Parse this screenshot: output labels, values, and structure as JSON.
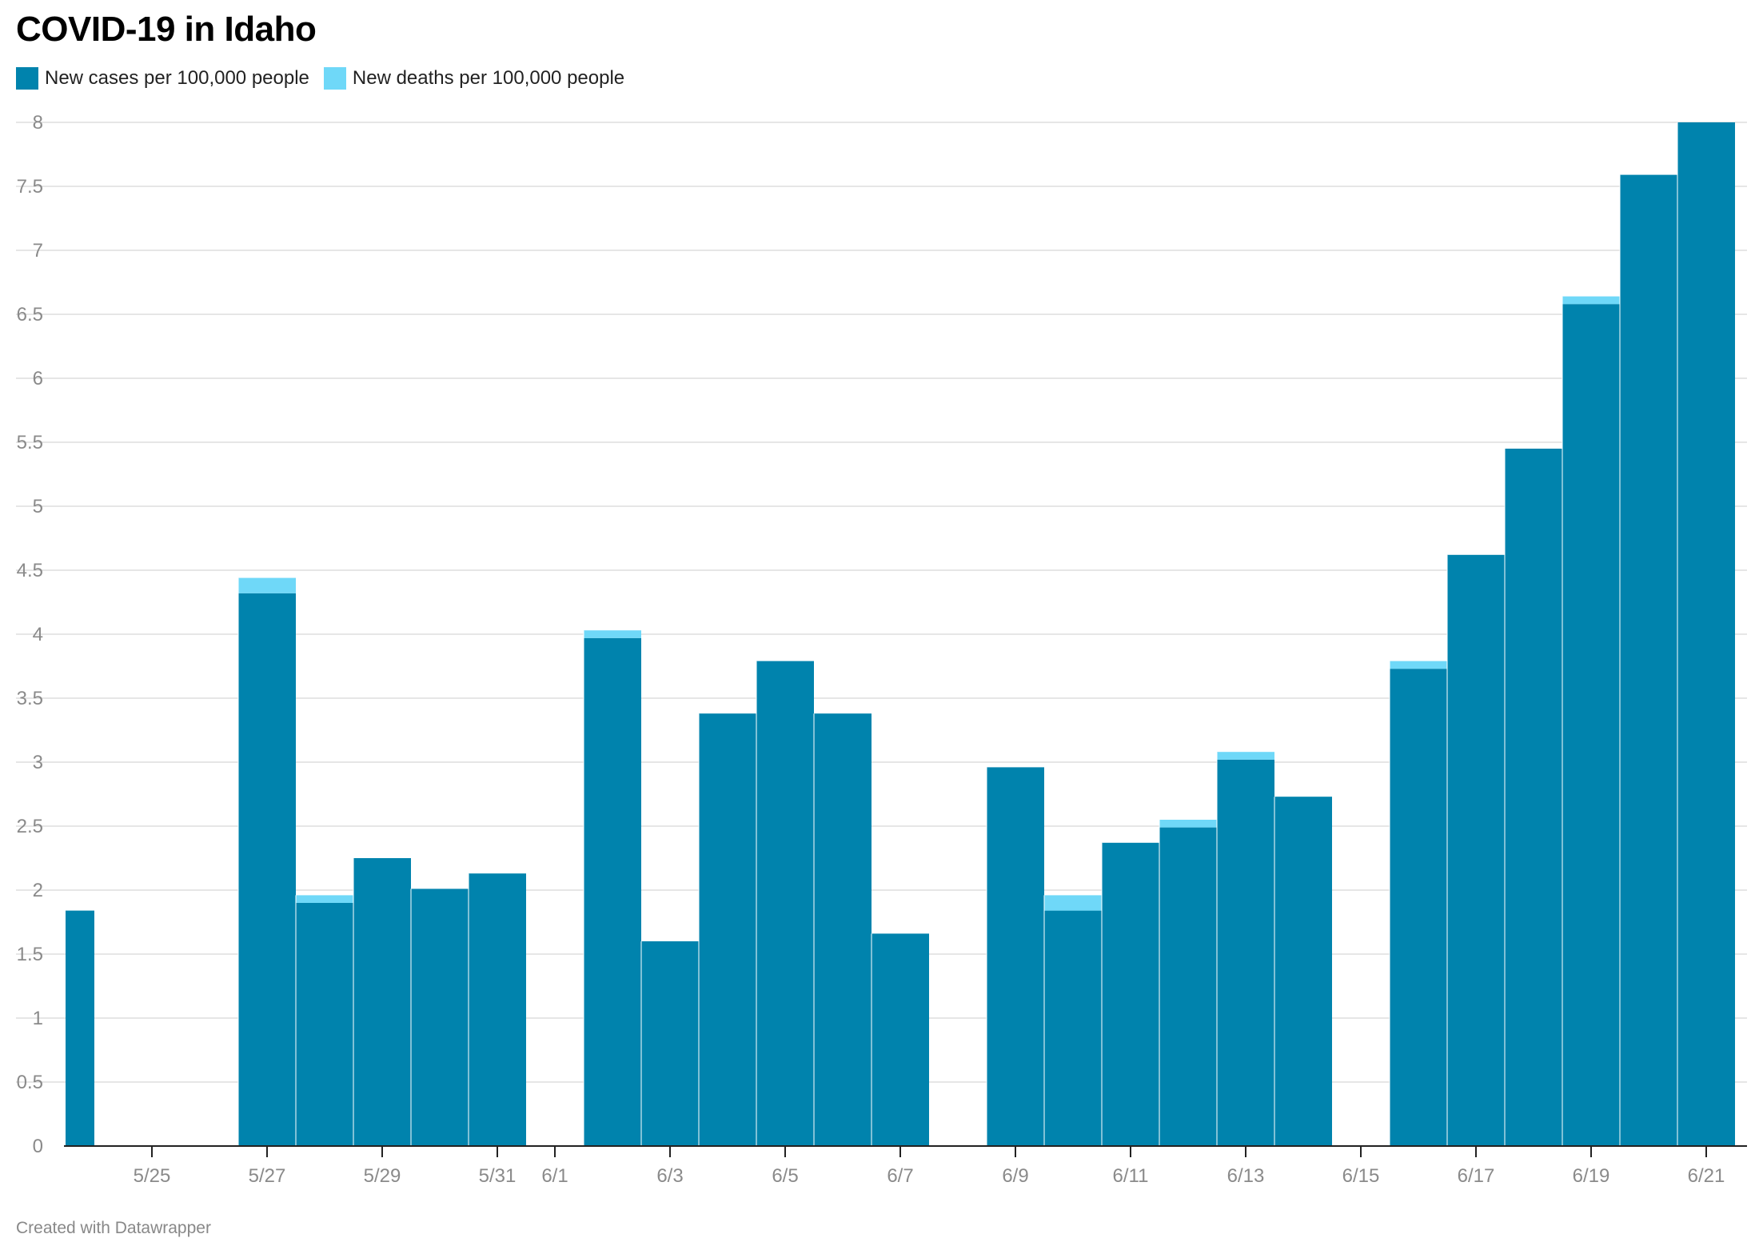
{
  "title": "COVID-19 in Idaho",
  "footer": "Created with Datawrapper",
  "colors": {
    "cases": "#0083ad",
    "deaths": "#6fd8f8",
    "grid": "#dddddd",
    "axis": "#222222",
    "tick_text": "#8a8a8a"
  },
  "chart_data": {
    "type": "bar",
    "stacked": true,
    "title": "COVID-19 in Idaho",
    "xlabel": "",
    "ylabel": "",
    "ylim": [
      0,
      8
    ],
    "yticks": [
      "0",
      "0.5",
      "1",
      "1.5",
      "2",
      "2.5",
      "3",
      "3.5",
      "4",
      "4.5",
      "5",
      "5.5",
      "6",
      "6.5",
      "7",
      "7.5",
      "8"
    ],
    "grid": true,
    "legend": "top-left",
    "categories": [
      "5/24",
      "5/25",
      "5/26",
      "5/27",
      "5/28",
      "5/29",
      "5/30",
      "5/31",
      "6/1",
      "6/2",
      "6/3",
      "6/4",
      "6/5",
      "6/6",
      "6/7",
      "6/8",
      "6/9",
      "6/10",
      "6/11",
      "6/12",
      "6/13",
      "6/14",
      "6/15",
      "6/16",
      "6/17",
      "6/18",
      "6/19",
      "6/20",
      "6/21"
    ],
    "xtick_labels": [
      "5/25",
      "5/27",
      "5/29",
      "5/31",
      "6/1",
      "6/3",
      "6/5",
      "6/7",
      "6/9",
      "6/11",
      "6/13",
      "6/15",
      "6/17",
      "6/19",
      "6/21"
    ],
    "series": [
      {
        "name": "New cases per 100,000 people",
        "values": [
          1.84,
          0,
          0,
          4.32,
          1.9,
          2.25,
          2.01,
          2.13,
          0,
          3.97,
          1.6,
          3.38,
          3.79,
          3.38,
          1.66,
          0,
          2.96,
          1.84,
          2.37,
          2.49,
          3.02,
          2.73,
          0,
          3.73,
          4.62,
          5.45,
          6.58,
          7.59,
          8.0
        ]
      },
      {
        "name": "New deaths per 100,000 people",
        "values": [
          0,
          0,
          0,
          0.12,
          0.06,
          0,
          0,
          0,
          0,
          0.06,
          0,
          0,
          0,
          0,
          0,
          0,
          0,
          0.12,
          0,
          0.06,
          0.06,
          0,
          0,
          0.06,
          0,
          0,
          0.06,
          0,
          0
        ]
      }
    ]
  }
}
